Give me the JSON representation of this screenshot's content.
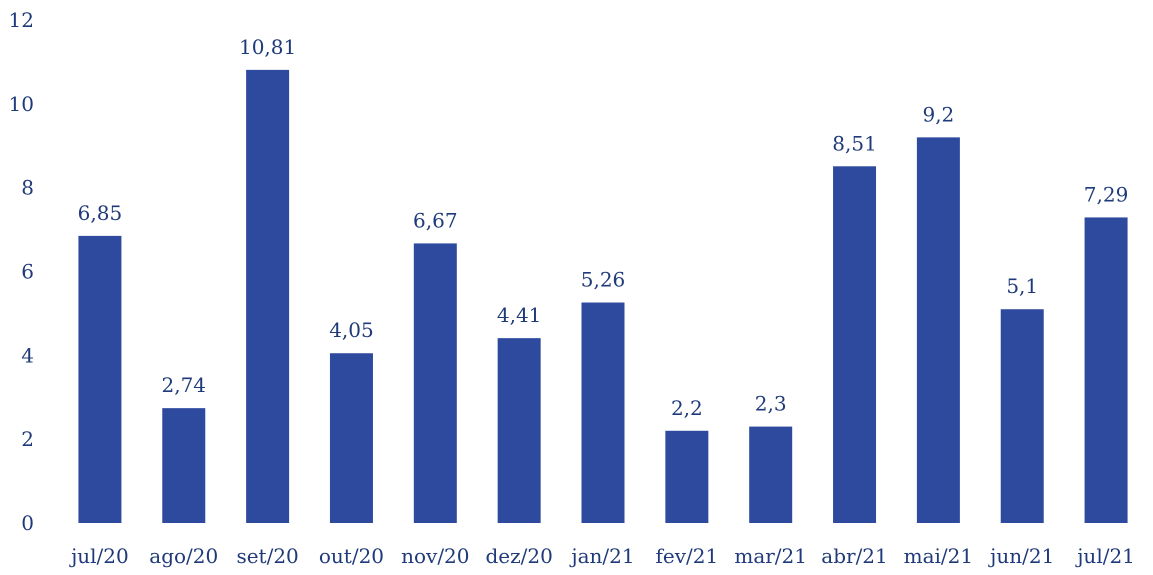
{
  "chart_data": {
    "type": "bar",
    "categories": [
      "jul/20",
      "ago/20",
      "set/20",
      "out/20",
      "nov/20",
      "dez/20",
      "jan/21",
      "fev/21",
      "mar/21",
      "abr/21",
      "mai/21",
      "jun/21",
      "jul/21"
    ],
    "values": [
      6.85,
      2.74,
      10.81,
      4.05,
      6.67,
      4.41,
      5.26,
      2.2,
      2.3,
      8.51,
      9.2,
      5.1,
      7.29
    ],
    "value_labels": [
      "6,85",
      "2,74",
      "10,81",
      "4,05",
      "6,67",
      "4,41",
      "5,26",
      "2,2",
      "2,3",
      "8,51",
      "9,2",
      "5,1",
      "7,29"
    ],
    "y_ticks": [
      0,
      2,
      4,
      6,
      8,
      10,
      12
    ],
    "ylim": [
      0,
      12
    ],
    "grid": false,
    "legend": "none",
    "title": "",
    "xlabel": "",
    "ylabel": ""
  },
  "colors": {
    "bar": "#2E4A9E",
    "text": "#1F3A7A"
  }
}
